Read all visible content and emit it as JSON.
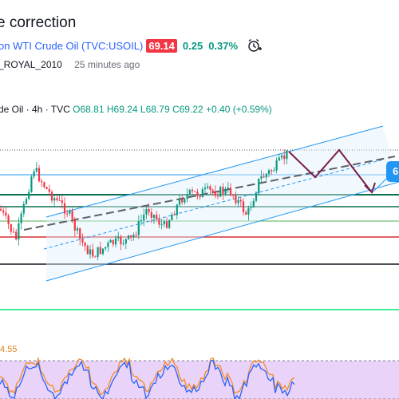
{
  "header": {
    "title": "correction",
    "symbol_prefix": "on",
    "symbol_name": "WTI Crude Oil (TVC:USOIL)",
    "price": "69.14",
    "change": "0.25",
    "change_pct": "0.37%",
    "alarm_icon": "alarm-clock-plus-icon",
    "author": "_ROYAL_2010",
    "time_ago": "25 minutes ago"
  },
  "legend": {
    "symbol": "de Oil · 4h · TVC",
    "open": "O68.81",
    "high": "H69.24",
    "low": "L68.79",
    "close": "C69.22",
    "change": "+0.40 (+0.59%)"
  },
  "oscillator": {
    "label": "4.55"
  },
  "end_badge": {
    "label": "6"
  },
  "colors": {
    "up": "#089981",
    "down": "#f23645",
    "channel": "#2196f3",
    "projection": "#7a1e4a",
    "oscillator_fill": "#e1c4f5"
  }
}
